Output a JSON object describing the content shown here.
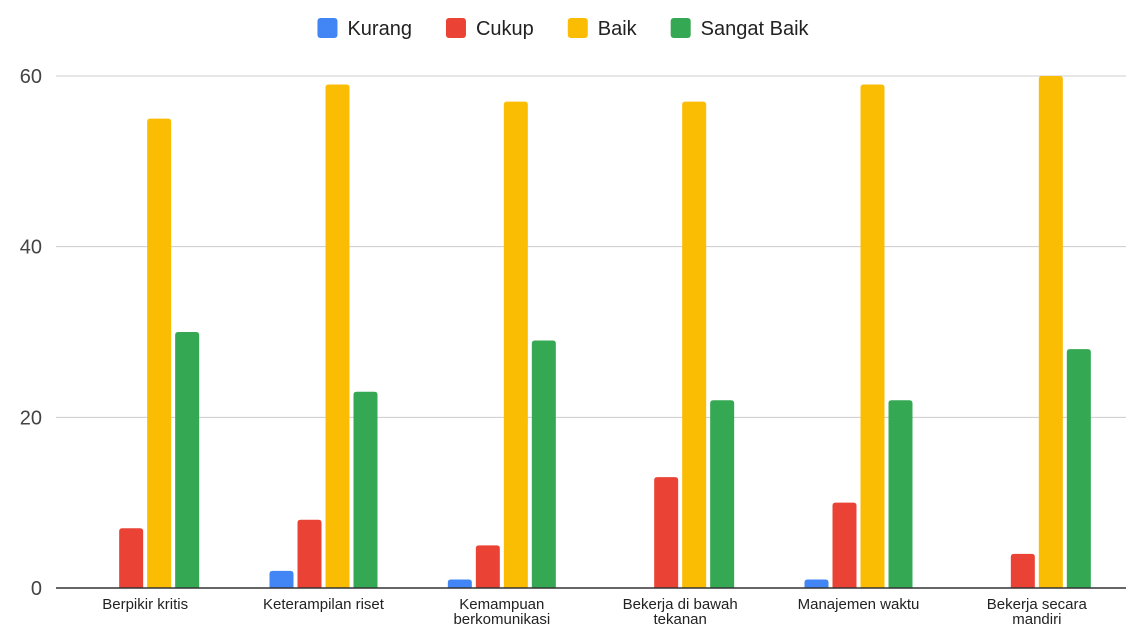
{
  "chart_data": {
    "type": "bar",
    "title": "",
    "xlabel": "",
    "ylabel": "",
    "ylim": [
      0,
      60
    ],
    "yticks": [
      0,
      20,
      40,
      60
    ],
    "grid": true,
    "legend_position": "top-center",
    "categories": [
      [
        "Berpikir kritis"
      ],
      [
        "Keterampilan riset"
      ],
      [
        "Kemampuan",
        "berkomunikasi"
      ],
      [
        "Bekerja di bawah",
        "tekanan"
      ],
      [
        "Manajemen waktu"
      ],
      [
        "Bekerja secara",
        "mandiri"
      ]
    ],
    "series": [
      {
        "name": "Kurang",
        "color": "#4285f4",
        "values": [
          0,
          2,
          1,
          0,
          1,
          0
        ]
      },
      {
        "name": "Cukup",
        "color": "#ea4335",
        "values": [
          7,
          8,
          5,
          13,
          10,
          4
        ]
      },
      {
        "name": "Baik",
        "color": "#fbbc04",
        "values": [
          55,
          59,
          57,
          57,
          59,
          60
        ]
      },
      {
        "name": "Sangat Baik",
        "color": "#34a853",
        "values": [
          30,
          23,
          29,
          22,
          22,
          28
        ]
      }
    ]
  }
}
